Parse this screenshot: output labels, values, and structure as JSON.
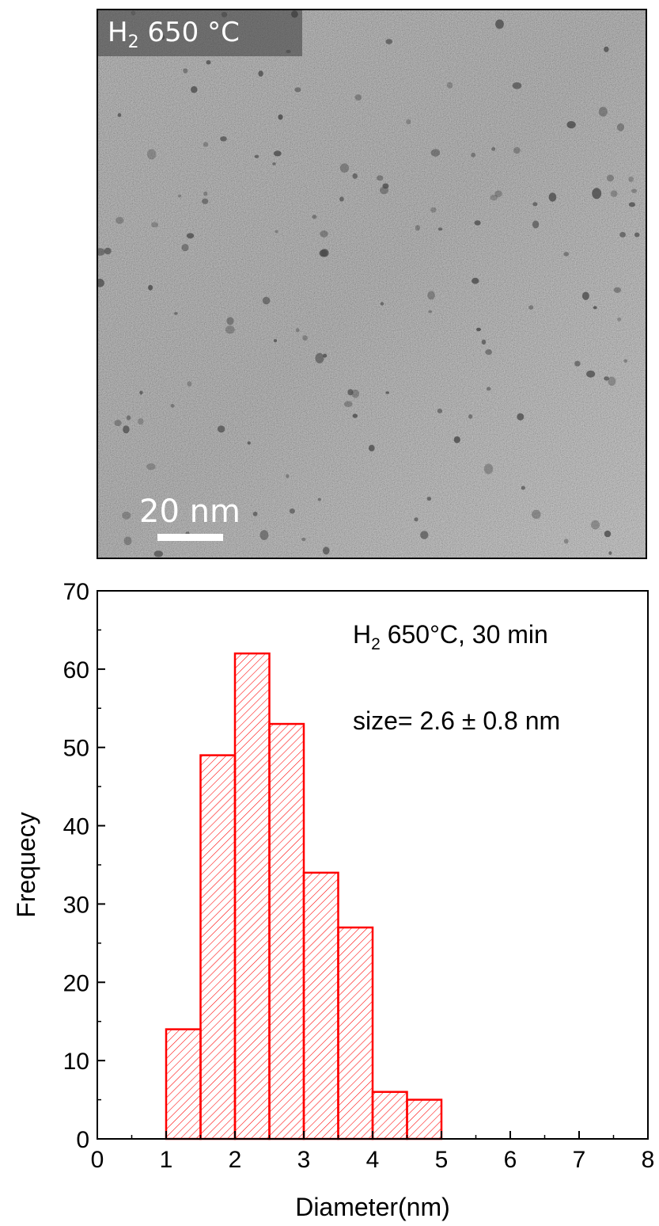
{
  "tem_image": {
    "label_main": "H",
    "label_sub": "2",
    "label_rest": " 650 °C",
    "scale_bar_text": "20 nm"
  },
  "chart_data": {
    "type": "bar",
    "bins": [
      {
        "from": 1.0,
        "to": 1.5,
        "value": 14
      },
      {
        "from": 1.5,
        "to": 2.0,
        "value": 49
      },
      {
        "from": 2.0,
        "to": 2.5,
        "value": 62
      },
      {
        "from": 2.5,
        "to": 3.0,
        "value": 53
      },
      {
        "from": 3.0,
        "to": 3.5,
        "value": 34
      },
      {
        "from": 3.5,
        "to": 4.0,
        "value": 27
      },
      {
        "from": 4.0,
        "to": 4.5,
        "value": 6
      },
      {
        "from": 4.5,
        "to": 5.0,
        "value": 5
      }
    ],
    "xlabel": "Diameter(nm)",
    "ylabel": "Frequecy",
    "xlim": [
      0,
      8
    ],
    "ylim": [
      0,
      70
    ],
    "x_ticks": [
      "0",
      "1",
      "2",
      "3",
      "4",
      "5",
      "6",
      "7",
      "8"
    ],
    "y_ticks": [
      "0",
      "10",
      "20",
      "30",
      "40",
      "50",
      "60",
      "70"
    ],
    "annotation_main": "H",
    "annotation_sub": "2",
    "annotation_rest": " 650°C, 30 min",
    "annotation_size": "size= 2.6 ± 0.8 nm",
    "bar_color": "#ff0000",
    "grid": false
  }
}
